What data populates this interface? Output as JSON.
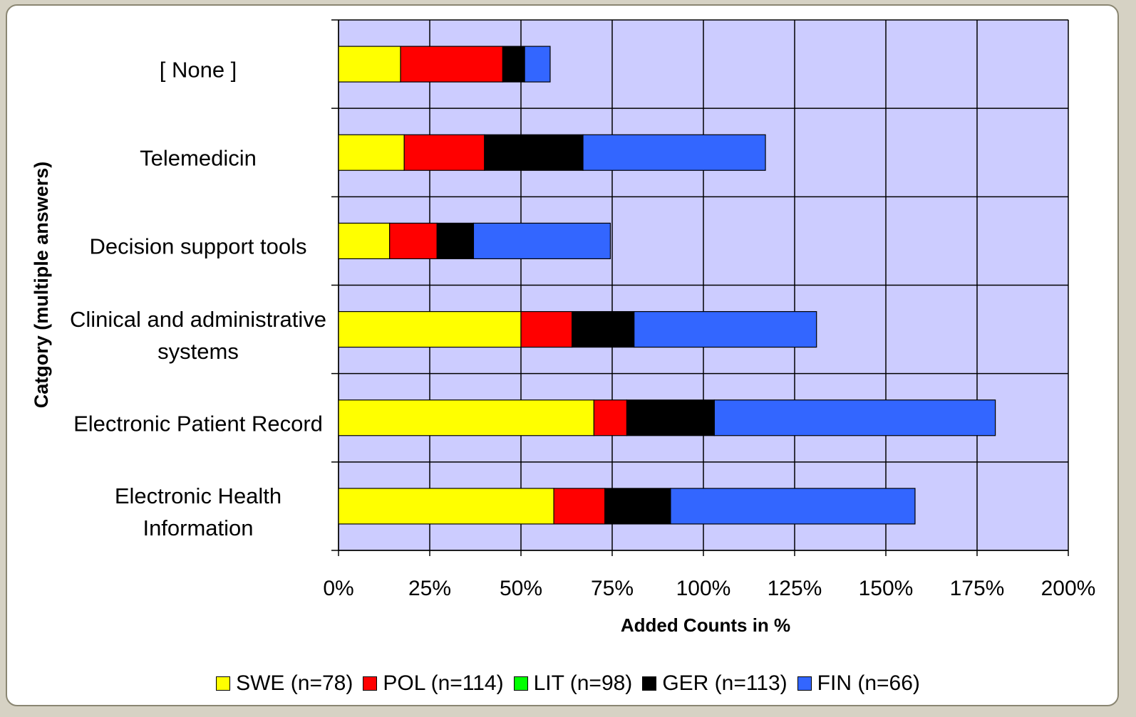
{
  "chart_data": {
    "type": "stacked-barh",
    "xlabel": "Added Counts in %",
    "ylabel": "Catgory (multiple answers)",
    "categories": [
      "[ None ]",
      "Telemedicin",
      "Decision support tools",
      "Clinical and administrative systems",
      "Electronic Patient Record",
      "Electronic Health Information"
    ],
    "series": [
      {
        "name": "SWE (n=78)",
        "color": "#ffff00",
        "values": [
          17,
          18,
          14,
          50,
          70,
          59
        ]
      },
      {
        "name": "POL (n=114)",
        "color": "#ff0000",
        "values": [
          28,
          22,
          13,
          14,
          9,
          14
        ]
      },
      {
        "name": "LIT (n=98)",
        "color": "#00ff00",
        "values": [
          0,
          0,
          0,
          0,
          0,
          0
        ]
      },
      {
        "name": "GER (n=113)",
        "color": "#000000",
        "values": [
          6,
          27,
          10,
          17,
          24,
          18
        ]
      },
      {
        "name": "FIN (n=66)",
        "color": "#3366ff",
        "values": [
          7,
          50,
          37.5,
          50,
          77,
          67
        ]
      }
    ],
    "xlim": [
      0,
      200
    ],
    "xticks": [
      {
        "value": 0,
        "label": "0%"
      },
      {
        "value": 25,
        "label": "25%"
      },
      {
        "value": 50,
        "label": "50%"
      },
      {
        "value": 75,
        "label": "75%"
      },
      {
        "value": 100,
        "label": "100%"
      },
      {
        "value": 125,
        "label": "125%"
      },
      {
        "value": 150,
        "label": "150%"
      },
      {
        "value": 175,
        "label": "175%"
      },
      {
        "value": 200,
        "label": "200%"
      }
    ],
    "grid": true,
    "legend": "bottom"
  }
}
